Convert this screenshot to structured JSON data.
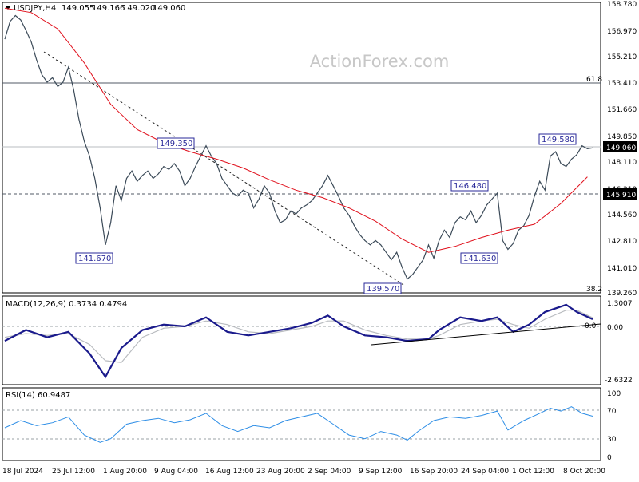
{
  "chart_data": [
    {
      "type": "line",
      "panel": "price",
      "symbol_header": "USDJPY,H4",
      "ohlc": [
        "149.055",
        "149.166",
        "149.020",
        "149.060"
      ],
      "watermark": "ActionForex.com",
      "ylim": [
        139.26,
        158.78
      ],
      "y_ticks": [
        "158.780",
        "156.970",
        "155.210",
        "153.410",
        "151.660",
        "149.850",
        "148.110",
        "146.310",
        "144.560",
        "142.810",
        "141.010",
        "139.260"
      ],
      "current_price": "149.060",
      "x_dates": [
        "18 Jul 2024",
        "25 Jul 12:00",
        "1 Aug 20:00",
        "9 Aug 04:00",
        "16 Aug 12:00",
        "23 Aug 20:00",
        "2 Sep 04:00",
        "9 Sep 12:00",
        "16 Sep 20:00",
        "24 Sep 04:00",
        "1 Oct 12:00",
        "8 Oct 20:00"
      ],
      "series": [
        {
          "kind": "price-close",
          "points": [
            [
              0,
              156.4
            ],
            [
              1,
              157.6
            ],
            [
              2,
              158.0
            ],
            [
              3,
              157.7
            ],
            [
              4,
              157.0
            ],
            [
              5,
              156.2
            ],
            [
              6,
              155.0
            ],
            [
              7,
              154.0
            ],
            [
              8,
              153.5
            ],
            [
              9,
              153.8
            ],
            [
              10,
              153.2
            ],
            [
              11,
              153.5
            ],
            [
              12,
              154.5
            ],
            [
              13,
              153.0
            ],
            [
              14,
              151.0
            ],
            [
              15,
              149.5
            ],
            [
              16,
              148.5
            ],
            [
              17,
              147.0
            ],
            [
              18,
              145.0
            ],
            [
              19,
              142.5
            ],
            [
              20,
              144.0
            ],
            [
              21,
              146.5
            ],
            [
              22,
              145.5
            ],
            [
              23,
              147.0
            ],
            [
              24,
              147.5
            ],
            [
              25,
              146.8
            ],
            [
              26,
              147.2
            ],
            [
              27,
              147.5
            ],
            [
              28,
              147.0
            ],
            [
              29,
              147.3
            ],
            [
              30,
              147.8
            ],
            [
              31,
              147.6
            ],
            [
              32,
              148.0
            ],
            [
              33,
              147.5
            ],
            [
              34,
              146.5
            ],
            [
              35,
              147.0
            ],
            [
              36,
              147.8
            ],
            [
              37,
              148.5
            ],
            [
              38,
              149.2
            ],
            [
              39,
              148.5
            ],
            [
              40,
              148.0
            ],
            [
              41,
              147.0
            ],
            [
              42,
              146.5
            ],
            [
              43,
              146.0
            ],
            [
              44,
              145.8
            ],
            [
              45,
              146.2
            ],
            [
              46,
              146.0
            ],
            [
              47,
              145.0
            ],
            [
              48,
              145.6
            ],
            [
              49,
              146.5
            ],
            [
              50,
              146.0
            ],
            [
              51,
              144.8
            ],
            [
              52,
              144.0
            ],
            [
              53,
              144.2
            ],
            [
              54,
              144.8
            ],
            [
              55,
              144.6
            ],
            [
              56,
              145.0
            ],
            [
              57,
              145.2
            ],
            [
              58,
              145.5
            ],
            [
              59,
              146.0
            ],
            [
              60,
              146.5
            ],
            [
              61,
              147.2
            ],
            [
              62,
              146.5
            ],
            [
              63,
              145.8
            ],
            [
              64,
              145.0
            ],
            [
              65,
              144.5
            ],
            [
              66,
              143.8
            ],
            [
              67,
              143.2
            ],
            [
              68,
              142.8
            ],
            [
              69,
              142.5
            ],
            [
              70,
              142.8
            ],
            [
              71,
              142.5
            ],
            [
              72,
              142.0
            ],
            [
              73,
              141.5
            ],
            [
              74,
              142.0
            ],
            [
              75,
              141.0
            ],
            [
              76,
              140.2
            ],
            [
              77,
              140.5
            ],
            [
              78,
              141.0
            ],
            [
              79,
              141.5
            ],
            [
              80,
              142.5
            ],
            [
              81,
              141.6
            ],
            [
              82,
              142.8
            ],
            [
              83,
              143.5
            ],
            [
              84,
              143.0
            ],
            [
              85,
              144.0
            ],
            [
              86,
              144.4
            ],
            [
              87,
              144.2
            ],
            [
              88,
              144.8
            ],
            [
              89,
              144.0
            ],
            [
              90,
              144.5
            ],
            [
              91,
              145.2
            ],
            [
              92,
              145.6
            ],
            [
              93,
              146.0
            ],
            [
              94,
              142.8
            ],
            [
              95,
              142.2
            ],
            [
              96,
              142.6
            ],
            [
              97,
              143.5
            ],
            [
              98,
              143.8
            ],
            [
              99,
              144.5
            ],
            [
              100,
              145.8
            ],
            [
              101,
              146.8
            ],
            [
              102,
              146.2
            ],
            [
              103,
              148.5
            ],
            [
              104,
              148.8
            ],
            [
              105,
              148.0
            ],
            [
              106,
              147.8
            ],
            [
              107,
              148.3
            ],
            [
              108,
              148.6
            ],
            [
              109,
              149.2
            ],
            [
              110,
              149.0
            ],
            [
              111,
              149.06
            ]
          ]
        },
        {
          "kind": "sma",
          "points": [
            [
              0,
              158.5
            ],
            [
              5,
              158.2
            ],
            [
              10,
              157.1
            ],
            [
              15,
              154.8
            ],
            [
              20,
              152.0
            ],
            [
              25,
              150.3
            ],
            [
              30,
              149.4
            ],
            [
              35,
              148.8
            ],
            [
              40,
              148.3
            ],
            [
              45,
              147.7
            ],
            [
              50,
              146.9
            ],
            [
              55,
              146.2
            ],
            [
              60,
              145.7
            ],
            [
              65,
              145.0
            ],
            [
              70,
              144.1
            ],
            [
              75,
              142.9
            ],
            [
              80,
              142.0
            ],
            [
              85,
              142.4
            ],
            [
              90,
              143.0
            ],
            [
              95,
              143.5
            ],
            [
              100,
              143.9
            ],
            [
              105,
              145.3
            ],
            [
              110,
              147.1
            ]
          ]
        }
      ],
      "annotations": [
        {
          "label": "149.350",
          "x": 38,
          "y": 149.35
        },
        {
          "label": "141.670",
          "x": 19,
          "y": 141.67
        },
        {
          "label": "139.570",
          "x": 76,
          "y": 139.57
        },
        {
          "label": "146.480",
          "x": 93,
          "y": 146.48
        },
        {
          "label": "141.630",
          "x": 95,
          "y": 141.63
        },
        {
          "label": "149.580",
          "x": 107,
          "y": 149.58
        }
      ],
      "horizontal_levels": [
        {
          "label": "61.8",
          "value": 153.41,
          "style": "solid"
        },
        {
          "label": "38.2",
          "value": 139.26,
          "style": "solid"
        },
        {
          "label": "145.910",
          "value": 145.91,
          "style": "dashed"
        },
        {
          "value": 149.06,
          "style": "current"
        }
      ],
      "trendlines": [
        {
          "from": [
            7,
            155.0
          ],
          "to": [
            76,
            139.6
          ],
          "style": "dashed"
        }
      ]
    },
    {
      "type": "line",
      "panel": "macd",
      "title": "MACD(12,26,9) 0.3734 0.4794",
      "ylim": [
        -3.0,
        1.6
      ],
      "y_ticks": [
        "1.3007",
        "0.00",
        "-2.6322"
      ],
      "zero_label": "0.0",
      "series": [
        {
          "kind": "macd",
          "points": [
            [
              0,
              -0.8
            ],
            [
              4,
              -0.2
            ],
            [
              8,
              -0.6
            ],
            [
              12,
              -0.3
            ],
            [
              16,
              -1.5
            ],
            [
              19,
              -2.8
            ],
            [
              22,
              -1.2
            ],
            [
              26,
              -0.2
            ],
            [
              30,
              0.1
            ],
            [
              34,
              0.0
            ],
            [
              38,
              0.5
            ],
            [
              42,
              -0.3
            ],
            [
              46,
              -0.5
            ],
            [
              50,
              -0.3
            ],
            [
              54,
              -0.1
            ],
            [
              58,
              0.2
            ],
            [
              61,
              0.6
            ],
            [
              64,
              0.0
            ],
            [
              68,
              -0.5
            ],
            [
              72,
              -0.6
            ],
            [
              76,
              -0.8
            ],
            [
              80,
              -0.7
            ],
            [
              82,
              -0.2
            ],
            [
              86,
              0.5
            ],
            [
              90,
              0.3
            ],
            [
              93,
              0.5
            ],
            [
              96,
              -0.3
            ],
            [
              99,
              0.1
            ],
            [
              102,
              0.8
            ],
            [
              106,
              1.2
            ],
            [
              108,
              0.8
            ],
            [
              111,
              0.4
            ]
          ]
        },
        {
          "kind": "signal",
          "points": [
            [
              0,
              -0.6
            ],
            [
              4,
              -0.4
            ],
            [
              8,
              -0.5
            ],
            [
              12,
              -0.4
            ],
            [
              16,
              -1.0
            ],
            [
              19,
              -1.9
            ],
            [
              22,
              -2.0
            ],
            [
              26,
              -0.6
            ],
            [
              30,
              -0.1
            ],
            [
              34,
              0.0
            ],
            [
              38,
              0.3
            ],
            [
              42,
              0.1
            ],
            [
              46,
              -0.3
            ],
            [
              50,
              -0.4
            ],
            [
              54,
              -0.2
            ],
            [
              58,
              0.0
            ],
            [
              61,
              0.3
            ],
            [
              64,
              0.3
            ],
            [
              68,
              -0.2
            ],
            [
              72,
              -0.5
            ],
            [
              76,
              -0.7
            ],
            [
              80,
              -0.7
            ],
            [
              82,
              -0.5
            ],
            [
              86,
              0.1
            ],
            [
              90,
              0.3
            ],
            [
              93,
              0.4
            ],
            [
              96,
              0.1
            ],
            [
              99,
              -0.1
            ],
            [
              102,
              0.4
            ],
            [
              106,
              0.9
            ],
            [
              108,
              0.9
            ],
            [
              111,
              0.48
            ]
          ]
        }
      ],
      "trendlines": [
        {
          "from": [
            70,
            -0.75
          ],
          "to": [
            111,
            0.0
          ],
          "style": "solid"
        }
      ]
    },
    {
      "type": "line",
      "panel": "rsi",
      "title": "RSI(14) 60.9487",
      "ylim": [
        0,
        100
      ],
      "y_ticks": [
        "100",
        "70",
        "30",
        "0"
      ],
      "levels": [
        70,
        30
      ],
      "series": [
        {
          "kind": "rsi",
          "points": [
            [
              0,
              45
            ],
            [
              3,
              55
            ],
            [
              6,
              48
            ],
            [
              9,
              52
            ],
            [
              12,
              60
            ],
            [
              15,
              35
            ],
            [
              18,
              25
            ],
            [
              20,
              30
            ],
            [
              23,
              50
            ],
            [
              26,
              55
            ],
            [
              29,
              58
            ],
            [
              32,
              52
            ],
            [
              35,
              56
            ],
            [
              38,
              65
            ],
            [
              41,
              48
            ],
            [
              44,
              40
            ],
            [
              47,
              48
            ],
            [
              50,
              45
            ],
            [
              53,
              55
            ],
            [
              56,
              60
            ],
            [
              59,
              65
            ],
            [
              62,
              50
            ],
            [
              65,
              35
            ],
            [
              68,
              30
            ],
            [
              71,
              40
            ],
            [
              74,
              35
            ],
            [
              76,
              28
            ],
            [
              78,
              40
            ],
            [
              81,
              55
            ],
            [
              84,
              60
            ],
            [
              87,
              58
            ],
            [
              90,
              62
            ],
            [
              93,
              68
            ],
            [
              95,
              42
            ],
            [
              98,
              55
            ],
            [
              101,
              65
            ],
            [
              103,
              72
            ],
            [
              105,
              68
            ],
            [
              107,
              74
            ],
            [
              109,
              65
            ],
            [
              111,
              61
            ]
          ]
        }
      ]
    }
  ]
}
